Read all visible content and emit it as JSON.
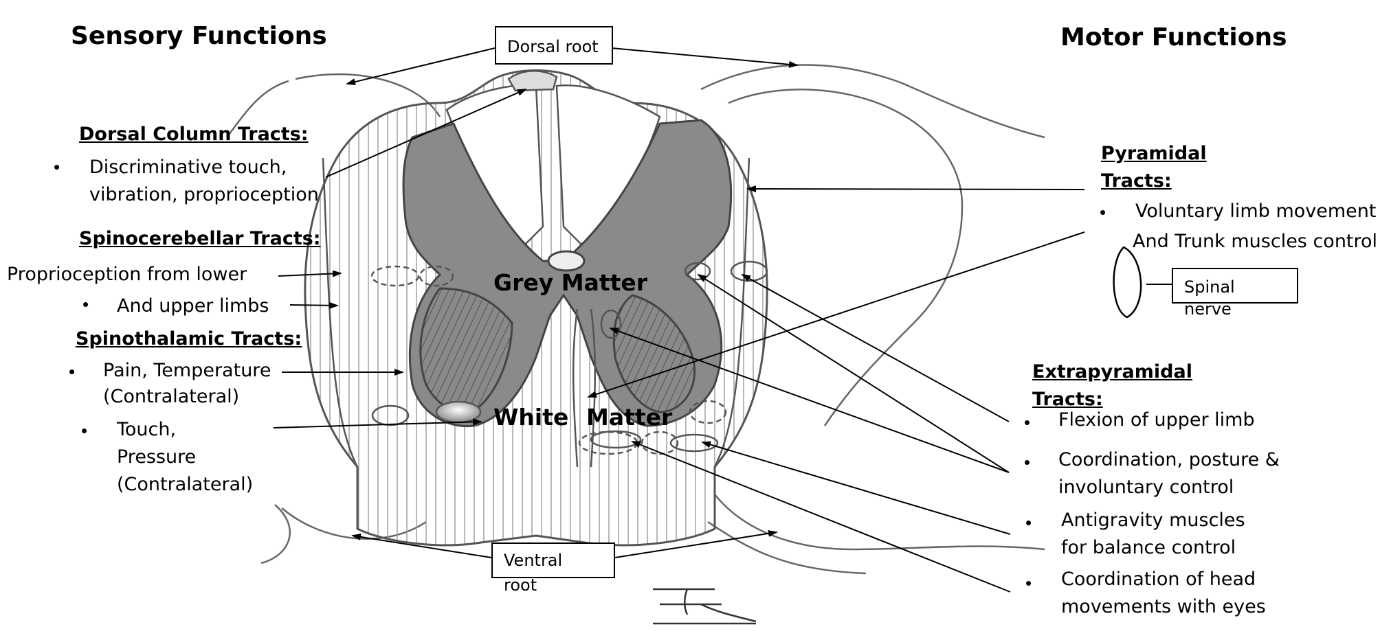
{
  "headings": {
    "sensory": "Sensory Functions",
    "motor": "Motor Functions"
  },
  "boxes": {
    "dorsal_root": "Dorsal root",
    "spinal_nerve": "Spinal nerve",
    "ventral_root_1": "Ventral",
    "ventral_root_2": "root"
  },
  "center": {
    "grey_matter": "Grey Matter",
    "white": "White",
    "matter": "Matter"
  },
  "left": {
    "dorsal_column_title": "Dorsal Column Tracts:",
    "dorsal_line1": "Discriminative touch,",
    "dorsal_line2": "vibration, proprioception",
    "spinocerebellar_title": "Spinocerebellar Tracts:",
    "spino_line1": "Proprioception from lower",
    "spino_line2": "And upper limbs",
    "spinothalamic_title": "Spinothalamic Tracts:",
    "thal_line1": "Pain, Temperature",
    "thal_line2": "(Contralateral)",
    "thal_line3": "Touch,",
    "thal_line4": "Pressure",
    "thal_line5": "(Contralateral)"
  },
  "right": {
    "pyramidal_title_1": "Pyramidal",
    "pyramidal_title_2": "Tracts:",
    "pyr_line1": "Voluntary limb movement",
    "pyr_line2": "And Trunk muscles control",
    "extra_title_1": "Extrapyramidal",
    "extra_title_2": "Tracts:",
    "ex_line1": "Flexion of upper limb",
    "ex_line2": "Coordination, posture &",
    "ex_line3": "involuntary control",
    "ex_line4": "Antigravity muscles",
    "ex_line5": "for balance control",
    "ex_line6": "Coordination of head",
    "ex_line7": "movements with eyes"
  },
  "bullet_char": "•",
  "colors": {
    "grey_matter": "#8a8a8a",
    "outline": "#555555",
    "ink": "#000000"
  }
}
